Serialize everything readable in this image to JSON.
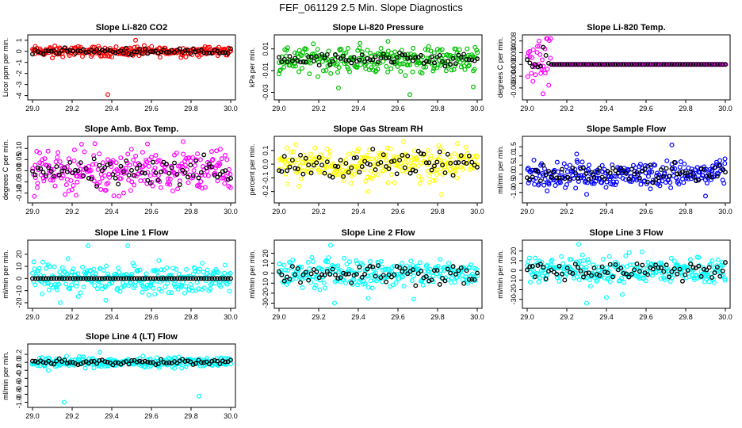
{
  "title": "FEF_061129  2.5 Min. Slope Diagnostics",
  "chart_data": [
    {
      "type": "scatter",
      "title": "Slope Li-820 CO2",
      "ylabel": "Licor ppm per min.",
      "color": "#ff0000",
      "xlim": [
        29.0,
        30.0
      ],
      "ylim": [
        -4.1,
        1.2
      ],
      "xticks": [
        29.0,
        29.2,
        29.4,
        29.6,
        29.8,
        30.0
      ],
      "yticks": [
        1,
        0,
        -1,
        -2,
        -3,
        -4
      ],
      "ytick_labels": [
        "1",
        "0",
        "-1",
        "-2",
        "-3",
        "-4"
      ],
      "spread": 0.22,
      "black_spread": 0.12,
      "outliers": [
        [
          29.38,
          -3.9
        ],
        [
          29.52,
          1.0
        ],
        [
          29.1,
          -0.6
        ],
        [
          29.4,
          -0.5
        ]
      ]
    },
    {
      "type": "scatter",
      "title": "Slope Li-820 Pressure",
      "ylabel": "kPa per min.",
      "color": "#00c000",
      "xlim": [
        29.0,
        30.0
      ],
      "ylim": [
        -0.034,
        0.02
      ],
      "xticks": [
        29.0,
        29.2,
        29.4,
        29.6,
        29.8,
        30.0
      ],
      "yticks": [
        0.01,
        -0.01,
        -0.03
      ],
      "ytick_labels": [
        "0.01",
        "-0.01",
        "-0.03"
      ],
      "spread": 0.006,
      "black_spread": 0.003,
      "outliers": [
        [
          29.3,
          -0.026
        ],
        [
          29.66,
          -0.032
        ],
        [
          29.98,
          -0.025
        ],
        [
          29.0,
          -0.013
        ],
        [
          29.1,
          -0.011
        ],
        [
          29.55,
          0.017
        ]
      ]
    },
    {
      "type": "scatter",
      "title": "Slope Li-820 Temp.",
      "ylabel": "degrees C per min.",
      "color": "#ff00ff",
      "xlim": [
        29.0,
        30.0
      ],
      "ylim": [
        -0.011,
        0.009
      ],
      "xticks": [
        29.0,
        29.2,
        29.4,
        29.6,
        29.8,
        30.0
      ],
      "yticks": [
        0.008,
        0.004,
        0.0,
        -0.004,
        -0.008
      ],
      "ytick_labels": [
        "0.008",
        "0.004",
        "0.000",
        "-0.004",
        "-0.008"
      ],
      "spread": 0.0,
      "black_spread": 0.0,
      "burst": [
        29.0,
        29.12,
        0.005
      ],
      "outliers": [
        [
          29.06,
          0.008
        ],
        [
          29.08,
          -0.01
        ]
      ]
    },
    {
      "type": "scatter",
      "title": "Slope Amb. Box Temp.",
      "ylabel": "degrees C per min.",
      "color": "#ff00ff",
      "xlim": [
        29.0,
        30.0
      ],
      "ylim": [
        -0.13,
        0.14
      ],
      "xticks": [
        29.0,
        29.2,
        29.4,
        29.6,
        29.8,
        30.0
      ],
      "yticks": [
        0.1,
        0.05,
        0.0,
        -0.05,
        -0.1
      ],
      "ytick_labels": [
        "0.10",
        "0.05",
        "0.00",
        "-0.05",
        "-0.10"
      ],
      "spread": 0.045,
      "black_spread": 0.03,
      "outliers": [
        [
          29.22,
          -0.11
        ],
        [
          29.58,
          0.12
        ],
        [
          29.76,
          0.13
        ],
        [
          29.46,
          -0.1
        ]
      ]
    },
    {
      "type": "scatter",
      "title": "Slope Gas Stream RH",
      "ylabel": "percent per min.",
      "color": "#ffff00",
      "xlim": [
        29.0,
        30.0
      ],
      "ylim": [
        -0.26,
        0.18
      ],
      "xticks": [
        29.0,
        29.2,
        29.4,
        29.6,
        29.8,
        30.0
      ],
      "yticks": [
        0.1,
        0.0,
        -0.1,
        -0.2
      ],
      "ytick_labels": [
        "0.1",
        "0.0",
        "-0.1",
        "-0.2"
      ],
      "spread": 0.06,
      "black_spread": 0.05,
      "outliers": [
        [
          29.45,
          -0.2
        ],
        [
          29.82,
          -0.22
        ],
        [
          29.9,
          0.15
        ]
      ]
    },
    {
      "type": "scatter",
      "title": "Slope Sample Flow",
      "ylabel": "ml/min per min.",
      "color": "#0000ff",
      "xlim": [
        29.0,
        30.0
      ],
      "ylim": [
        -1.4,
        1.9
      ],
      "xticks": [
        29.0,
        29.2,
        29.4,
        29.6,
        29.8,
        30.0
      ],
      "yticks": [
        1.5,
        1.0,
        0.5,
        0.0,
        -0.5,
        -1.0
      ],
      "ytick_labels": [
        "1.5",
        "1.0",
        "0.5",
        "0.0",
        "-0.5",
        "-1.0"
      ],
      "spread": 0.35,
      "black_spread": 0.25,
      "outliers": [
        [
          29.73,
          1.6
        ],
        [
          29.25,
          1.1
        ],
        [
          29.9,
          -1.2
        ],
        [
          29.3,
          -1.1
        ]
      ]
    },
    {
      "type": "scatter",
      "title": "Slope Line 1 Flow",
      "ylabel": "ml/min per min.",
      "color": "#00ffff",
      "xlim": [
        29.0,
        30.0
      ],
      "ylim": [
        -22,
        29
      ],
      "xticks": [
        29.0,
        29.2,
        29.4,
        29.6,
        29.8,
        30.0
      ],
      "yticks": [
        20,
        10,
        0,
        -10,
        -20
      ],
      "ytick_labels": [
        "20",
        "10",
        "0",
        "-10",
        "-20"
      ],
      "spread": 6,
      "black_spread": 0.0,
      "outliers": [
        [
          29.28,
          27
        ],
        [
          29.48,
          27
        ],
        [
          29.14,
          -20
        ],
        [
          29.37,
          -18
        ]
      ]
    },
    {
      "type": "scatter",
      "title": "Slope Line 2 Flow",
      "ylabel": "ml/min per min.",
      "color": "#00ffff",
      "xlim": [
        29.0,
        30.0
      ],
      "ylim": [
        -32,
        30
      ],
      "xticks": [
        29.0,
        29.2,
        29.4,
        29.6,
        29.8,
        30.0
      ],
      "yticks": [
        20,
        10,
        0,
        -10,
        -20,
        -30
      ],
      "ytick_labels": [
        "20",
        "10",
        "0",
        "-10",
        "-20",
        "-30"
      ],
      "spread": 7,
      "black_spread": 5,
      "outliers": [
        [
          29.26,
          28
        ],
        [
          29.28,
          -30
        ],
        [
          29.45,
          -25
        ],
        [
          29.68,
          -26
        ]
      ]
    },
    {
      "type": "scatter",
      "title": "Slope Line 3 Flow",
      "ylabel": "ml/min per min.",
      "color": "#00ffff",
      "xlim": [
        29.0,
        30.0
      ],
      "ylim": [
        -36,
        28
      ],
      "xticks": [
        29.0,
        29.2,
        29.4,
        29.6,
        29.8,
        30.0
      ],
      "yticks": [
        20,
        10,
        0,
        -10,
        -20,
        -30
      ],
      "ytick_labels": [
        "20",
        "10",
        "0",
        "-10",
        "-20",
        "-30"
      ],
      "spread": 7,
      "black_spread": 5,
      "outliers": [
        [
          29.26,
          27
        ],
        [
          29.3,
          -34
        ],
        [
          29.4,
          -28
        ],
        [
          29.48,
          -25
        ]
      ]
    },
    {
      "type": "scatter",
      "title": "Slope Line 4 (LT) Flow",
      "ylabel": "ml/min per min.",
      "color": "#00ffff",
      "xlim": [
        29.0,
        30.0
      ],
      "ylim": [
        -1.05,
        0.38
      ],
      "xticks": [
        29.0,
        29.2,
        29.4,
        29.6,
        29.8,
        30.0
      ],
      "yticks": [
        0.2,
        0.0,
        -0.2,
        -0.4,
        -0.6,
        -0.8,
        -1.0
      ],
      "ytick_labels": [
        "0.2",
        "0.0",
        "-0.2",
        "-0.4",
        "-0.6",
        "-0.8",
        "-1.0"
      ],
      "spread": 0.06,
      "black_spread": 0.04,
      "outliers": [
        [
          29.16,
          -1.0
        ],
        [
          29.84,
          -0.85
        ],
        [
          29.08,
          -0.2
        ],
        [
          29.34,
          0.25
        ]
      ]
    }
  ]
}
